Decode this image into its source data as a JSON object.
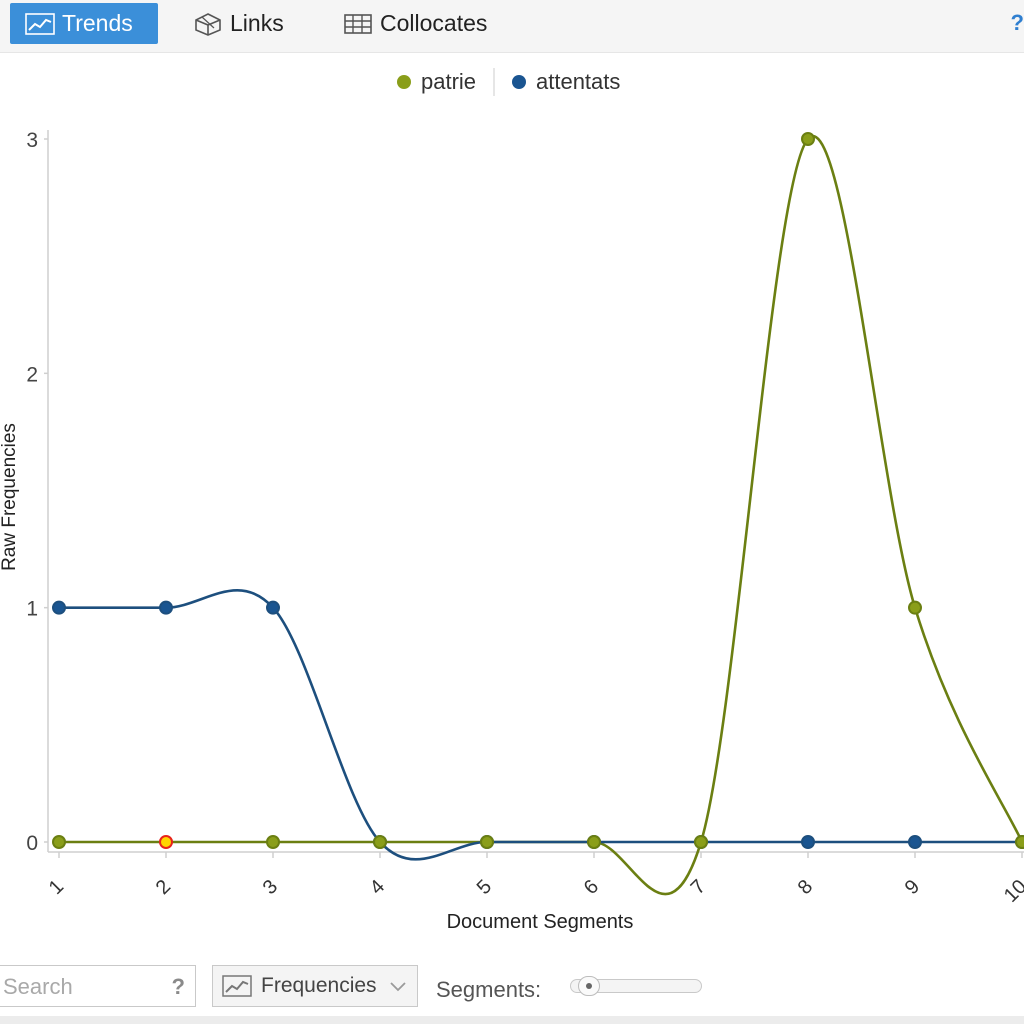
{
  "toolbar": {
    "tabs": [
      {
        "label": "Trends",
        "icon": "line-chart-icon",
        "active": true
      },
      {
        "label": "Links",
        "icon": "network-cube-icon",
        "active": false
      },
      {
        "label": "Collocates",
        "icon": "table-grid-icon",
        "active": false
      }
    ],
    "help_label": "?"
  },
  "chart_data": {
    "type": "line",
    "xlabel": "Document Segments",
    "ylabel": "Raw Frequencies",
    "categories": [
      "1",
      "2",
      "3",
      "4",
      "5",
      "6",
      "7",
      "8",
      "9",
      "10"
    ],
    "yticks": [
      "0",
      "1",
      "2",
      "3"
    ],
    "ylim": [
      0,
      3
    ],
    "legend_position": "top-center",
    "grid": false,
    "smoothed": true,
    "series": [
      {
        "name": "patrie",
        "color": "#8a9e1a",
        "line_color": "#6b7f12",
        "values": [
          0,
          0,
          0,
          0,
          0,
          0,
          0,
          3,
          1,
          0
        ]
      },
      {
        "name": "attentats",
        "color": "#1a5591",
        "line_color": "#1d4f7e",
        "values": [
          1,
          1,
          1,
          0,
          0,
          0,
          0,
          0,
          0,
          0
        ]
      }
    ],
    "highlight": {
      "series": "patrie",
      "index": 1,
      "fill": "#ffd400",
      "stroke": "#e8231b"
    }
  },
  "bottom": {
    "search_placeholder": "Search",
    "search_help": "?",
    "freq_button_label": "Frequencies",
    "segments_label": "Segments:",
    "segments_value": 0.1
  }
}
